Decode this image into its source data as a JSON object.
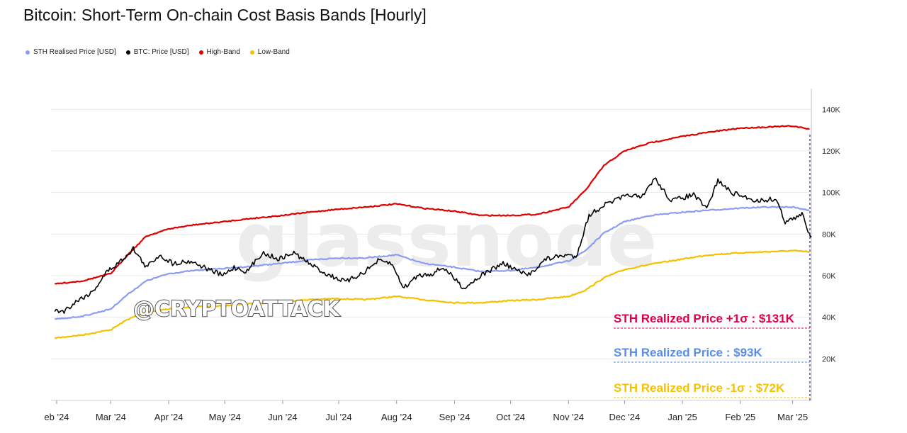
{
  "title": "Bitcoin: Short-Term On-chain Cost Basis Bands [Hourly]",
  "watermark": "glassnode",
  "stamp": "@CRYPTOATTACK",
  "legend": [
    {
      "label": "STH Realised Price [USD]",
      "color": "#8c9cf2"
    },
    {
      "label": "BTC: Price [USD]",
      "color": "#000000"
    },
    {
      "label": "High-Band",
      "color": "#e00000"
    },
    {
      "label": "Low-Band",
      "color": "#f5c000"
    }
  ],
  "annotations": [
    {
      "text": "STH Realized Price +1σ : $131K",
      "color": "#e0004a"
    },
    {
      "text": "STH Realized Price  : $93K",
      "color": "#5a8de8"
    },
    {
      "text": "STH Realized Price -1σ : $72K",
      "color": "#f5c200"
    }
  ],
  "chart_data": {
    "type": "line",
    "title": "Bitcoin: Short-Term On-chain Cost Basis Bands [Hourly]",
    "x_labels": [
      "eb '24",
      "Mar '24",
      "Apr '24",
      "May '24",
      "Jun '24",
      "Jul '24",
      "Aug '24",
      "Sep '24",
      "Oct '24",
      "Nov '24",
      "Dec '24",
      "Jan '25",
      "Feb '25",
      "Mar '25"
    ],
    "y_ticks": [
      "20K",
      "40K",
      "60K",
      "80K",
      "100K",
      "120K",
      "140K"
    ],
    "ylim": [
      0,
      150000
    ],
    "y_scale": "linear",
    "grid": "horizontal",
    "series": [
      {
        "name": "High-Band",
        "color": "#e00000",
        "x": [
          "2024-01-31",
          "2024-02-15",
          "2024-03-01",
          "2024-03-10",
          "2024-03-20",
          "2024-04-01",
          "2024-04-15",
          "2024-05-01",
          "2024-05-15",
          "2024-06-01",
          "2024-06-15",
          "2024-07-01",
          "2024-07-15",
          "2024-08-01",
          "2024-08-15",
          "2024-09-01",
          "2024-09-15",
          "2024-10-01",
          "2024-10-15",
          "2024-11-01",
          "2024-11-10",
          "2024-11-20",
          "2024-12-01",
          "2024-12-15",
          "2025-01-01",
          "2025-01-15",
          "2025-02-01",
          "2025-02-15",
          "2025-03-01",
          "2025-03-10"
        ],
        "y": [
          56000,
          57500,
          61000,
          70000,
          79000,
          82500,
          84500,
          86000,
          87500,
          89000,
          90500,
          92000,
          93000,
          94500,
          92500,
          91000,
          89000,
          89000,
          89500,
          93000,
          101000,
          113000,
          120000,
          124000,
          127000,
          129000,
          131000,
          131500,
          132000,
          130500
        ]
      },
      {
        "name": "STH Realised Price [USD]",
        "color": "#8c9cf2",
        "x": [
          "2024-01-31",
          "2024-02-15",
          "2024-03-01",
          "2024-03-10",
          "2024-03-20",
          "2024-04-01",
          "2024-04-15",
          "2024-05-01",
          "2024-05-15",
          "2024-06-01",
          "2024-06-15",
          "2024-07-01",
          "2024-07-15",
          "2024-08-01",
          "2024-08-15",
          "2024-09-01",
          "2024-09-15",
          "2024-10-01",
          "2024-10-15",
          "2024-11-01",
          "2024-11-10",
          "2024-11-20",
          "2024-12-01",
          "2024-12-15",
          "2025-01-01",
          "2025-01-15",
          "2025-02-01",
          "2025-02-15",
          "2025-03-01",
          "2025-03-10"
        ],
        "y": [
          39000,
          40500,
          44000,
          51000,
          57500,
          61000,
          62500,
          63500,
          64500,
          66000,
          67500,
          68500,
          68500,
          70000,
          66000,
          64000,
          62000,
          62500,
          64000,
          67000,
          72000,
          80500,
          86000,
          89000,
          90500,
          91500,
          92500,
          93000,
          93000,
          91500
        ]
      },
      {
        "name": "Low-Band",
        "color": "#f5c000",
        "x": [
          "2024-01-31",
          "2024-02-15",
          "2024-03-01",
          "2024-03-10",
          "2024-03-20",
          "2024-04-01",
          "2024-04-15",
          "2024-05-01",
          "2024-05-15",
          "2024-06-01",
          "2024-06-15",
          "2024-07-01",
          "2024-07-15",
          "2024-08-01",
          "2024-08-15",
          "2024-09-01",
          "2024-09-15",
          "2024-10-01",
          "2024-10-15",
          "2024-11-01",
          "2024-11-10",
          "2024-11-20",
          "2024-12-01",
          "2024-12-15",
          "2025-01-01",
          "2025-01-15",
          "2025-02-01",
          "2025-02-15",
          "2025-03-01",
          "2025-03-10"
        ],
        "y": [
          30000,
          31500,
          34000,
          39000,
          42500,
          44000,
          45000,
          45500,
          46500,
          47500,
          48500,
          49000,
          48500,
          50000,
          48500,
          47000,
          47000,
          48000,
          48500,
          50000,
          53000,
          59000,
          63000,
          65500,
          68000,
          70000,
          71000,
          71500,
          72000,
          71500
        ]
      },
      {
        "name": "BTC: Price [USD]",
        "color": "#000000",
        "x": [
          "2024-01-31",
          "2024-02-05",
          "2024-02-12",
          "2024-02-20",
          "2024-02-28",
          "2024-03-05",
          "2024-03-13",
          "2024-03-20",
          "2024-03-27",
          "2024-04-03",
          "2024-04-13",
          "2024-04-20",
          "2024-04-30",
          "2024-05-06",
          "2024-05-13",
          "2024-05-21",
          "2024-05-30",
          "2024-06-07",
          "2024-06-15",
          "2024-06-24",
          "2024-07-05",
          "2024-07-15",
          "2024-07-22",
          "2024-07-29",
          "2024-08-05",
          "2024-08-12",
          "2024-08-20",
          "2024-08-26",
          "2024-09-06",
          "2024-09-15",
          "2024-09-27",
          "2024-10-10",
          "2024-10-20",
          "2024-10-31",
          "2024-11-05",
          "2024-11-12",
          "2024-11-20",
          "2024-11-28",
          "2024-12-05",
          "2024-12-10",
          "2024-12-17",
          "2024-12-26",
          "2025-01-07",
          "2025-01-14",
          "2025-01-20",
          "2025-01-27",
          "2025-02-03",
          "2025-02-10",
          "2025-02-20",
          "2025-02-25",
          "2025-03-04",
          "2025-03-06",
          "2025-03-10",
          "2025-03-11"
        ],
        "y": [
          43000,
          43000,
          48000,
          52000,
          62000,
          66000,
          73000,
          64000,
          70000,
          66000,
          67000,
          64000,
          60000,
          64000,
          62000,
          71000,
          68000,
          71000,
          66000,
          61000,
          57000,
          62000,
          67000,
          66000,
          54000,
          60000,
          61000,
          64000,
          54000,
          60000,
          66000,
          60000,
          68000,
          70000,
          69000,
          89000,
          94000,
          97000,
          99000,
          97000,
          107000,
          96000,
          99000,
          92000,
          106000,
          100000,
          98000,
          96000,
          97000,
          86000,
          88000,
          90000,
          80000,
          79000
        ]
      }
    ]
  }
}
